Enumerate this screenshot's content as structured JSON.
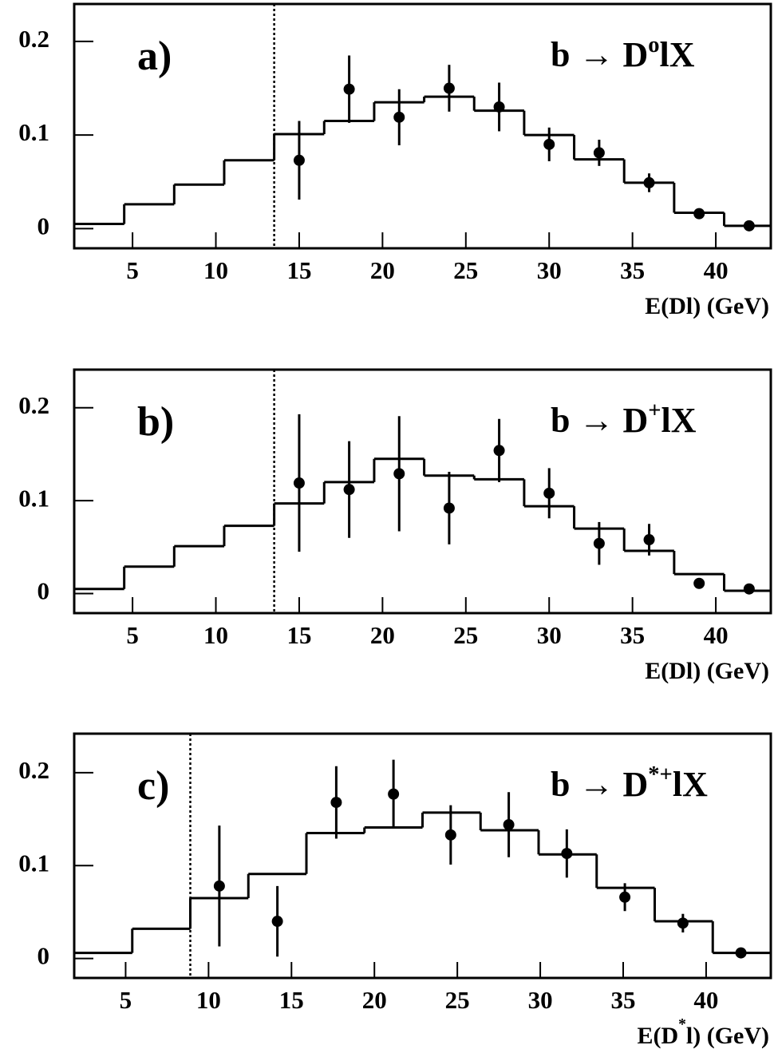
{
  "chart_data": [
    {
      "type": "histogram",
      "label": "a)",
      "process": {
        "base": "b → D",
        "sup": "o",
        "rest": "lX"
      },
      "xlabel": "E(Dl) (GeV)",
      "color": "#000000",
      "bins": [
        1.5,
        4.5,
        7.5,
        10.5,
        13.5,
        16.5,
        19.5,
        22.5,
        25.5,
        28.5,
        31.5,
        34.5,
        37.5,
        40.5,
        43.3
      ],
      "values": [
        0.005,
        0.026,
        0.047,
        0.073,
        0.101,
        0.115,
        0.135,
        0.141,
        0.126,
        0.1,
        0.074,
        0.049,
        0.017,
        0.003
      ],
      "points": {
        "x": [
          15,
          18,
          21,
          24,
          27,
          30,
          33,
          36,
          39,
          42
        ],
        "y": [
          0.073,
          0.149,
          0.119,
          0.15,
          0.13,
          0.09,
          0.081,
          0.049,
          0.016,
          0.003
        ],
        "err": [
          0.042,
          0.036,
          0.03,
          0.025,
          0.026,
          0.018,
          0.014,
          0.01,
          0.003,
          0.002
        ]
      },
      "cut": 13.5,
      "xlim": [
        1.5,
        43.3
      ],
      "ylim": [
        -0.021,
        0.24
      ],
      "xticks": [
        5,
        10,
        15,
        20,
        25,
        30,
        35,
        40
      ],
      "yticks": [
        0,
        0.1,
        0.2
      ]
    },
    {
      "type": "histogram",
      "label": "b)",
      "process": {
        "base": "b → D",
        "sup": "+",
        "rest": "lX"
      },
      "xlabel": "E(Dl) (GeV)",
      "color": "#000000",
      "bins": [
        1.5,
        4.5,
        7.5,
        10.5,
        13.5,
        16.5,
        19.5,
        22.5,
        25.5,
        28.5,
        31.5,
        34.5,
        37.5,
        40.5,
        43.3
      ],
      "values": [
        0.005,
        0.029,
        0.051,
        0.073,
        0.097,
        0.12,
        0.145,
        0.127,
        0.123,
        0.094,
        0.07,
        0.046,
        0.021,
        0.003
      ],
      "points": {
        "x": [
          15,
          18,
          21,
          24,
          27,
          30,
          33,
          36,
          39,
          42
        ],
        "y": [
          0.119,
          0.112,
          0.129,
          0.092,
          0.154,
          0.108,
          0.054,
          0.058,
          0.011,
          0.005
        ],
        "err": [
          0.074,
          0.052,
          0.062,
          0.039,
          0.034,
          0.027,
          0.023,
          0.017,
          0.003,
          0.002
        ]
      },
      "cut": 13.5,
      "xlim": [
        1.5,
        43.3
      ],
      "ylim": [
        -0.021,
        0.241
      ],
      "xticks": [
        5,
        10,
        15,
        20,
        25,
        30,
        35,
        40
      ],
      "yticks": [
        0,
        0.1,
        0.2
      ]
    },
    {
      "type": "histogram",
      "label": "c)",
      "process": {
        "base": "b → D",
        "sup": "*+",
        "rest": "lX"
      },
      "xlabel": {
        "base": "E(D",
        "sup": "*",
        "rest": "l) (GeV)"
      },
      "color": "#000000",
      "bins": [
        1.9,
        5.4,
        8.9,
        12.4,
        15.9,
        19.4,
        22.9,
        26.4,
        29.9,
        33.4,
        36.9,
        40.4,
        43.9
      ],
      "values": [
        0.006,
        0.032,
        0.065,
        0.091,
        0.135,
        0.141,
        0.157,
        0.138,
        0.112,
        0.076,
        0.04,
        0.006
      ],
      "points": {
        "x": [
          10.65,
          14.15,
          17.7,
          21.15,
          24.6,
          28.1,
          31.6,
          35.1,
          38.6,
          42.1
        ],
        "y": [
          0.078,
          0.04,
          0.168,
          0.177,
          0.133,
          0.144,
          0.113,
          0.066,
          0.038,
          0.006
        ],
        "err": [
          0.065,
          0.038,
          0.039,
          0.037,
          0.032,
          0.035,
          0.026,
          0.015,
          0.01,
          0.002
        ]
      },
      "cut": 8.9,
      "xlim": [
        1.9,
        43.9
      ],
      "ylim": [
        -0.021,
        0.242
      ],
      "xticks": [
        5,
        10,
        15,
        20,
        25,
        30,
        35,
        40
      ],
      "yticks": [
        0,
        0.1,
        0.2
      ]
    }
  ]
}
